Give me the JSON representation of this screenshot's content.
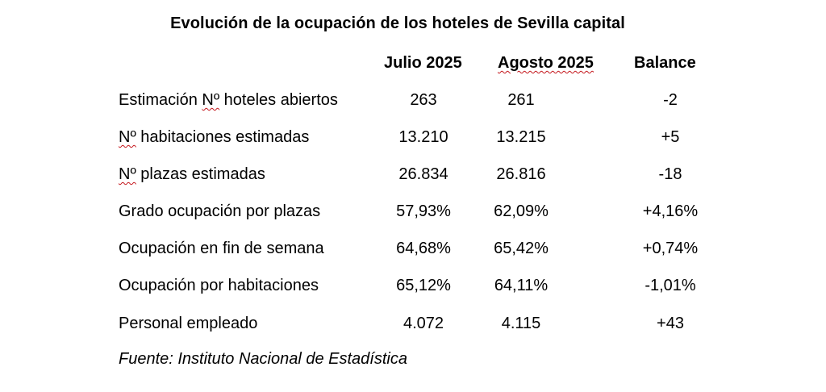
{
  "title": "Evolución de la ocupación de los hoteles de Sevilla capital",
  "columns": [
    "Julio 2025",
    "Agosto 2025",
    "Balance"
  ],
  "rows": [
    {
      "label_prefix": "Estimación ",
      "label_marked": "Nº",
      "label_suffix": " hoteles abiertos",
      "julio": "263",
      "agosto": "261",
      "balance": "-2"
    },
    {
      "label_prefix": "",
      "label_marked": "Nº",
      "label_suffix": " habitaciones estimadas",
      "julio": "13.210",
      "agosto": "13.215",
      "balance": "+5"
    },
    {
      "label_prefix": "",
      "label_marked": "Nº",
      "label_suffix": " plazas estimadas",
      "julio": "26.834",
      "agosto": "26.816",
      "balance": "-18"
    },
    {
      "label_prefix": "Grado ocupación por plazas",
      "label_marked": "",
      "label_suffix": "",
      "julio": "57,93%",
      "agosto": "62,09%",
      "balance": "+4,16%"
    },
    {
      "label_prefix": "Ocupación en fin de semana",
      "label_marked": "",
      "label_suffix": "",
      "julio": "64,68%",
      "agosto": "65,42%",
      "balance": "+0,74%"
    },
    {
      "label_prefix": "Ocupación por habitaciones",
      "label_marked": "",
      "label_suffix": "",
      "julio": "65,12%",
      "agosto": "64,11%",
      "balance": "-1,01%"
    },
    {
      "label_prefix": "Personal empleado",
      "label_marked": "",
      "label_suffix": "",
      "julio": "4.072",
      "agosto": "4.115",
      "balance": "+43"
    }
  ],
  "source": "Fuente: Instituto Nacional de Estadística",
  "colors": {
    "text": "#000000",
    "background": "#ffffff",
    "spellcheck_underline": "#c4161c"
  }
}
